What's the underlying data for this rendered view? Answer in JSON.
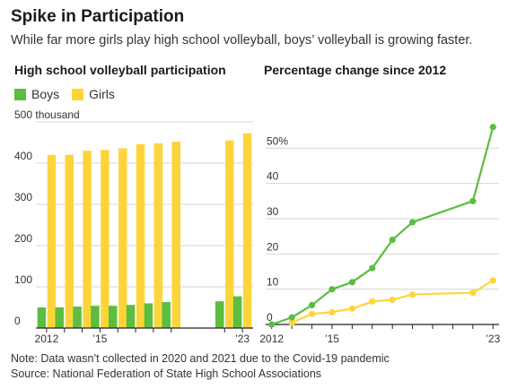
{
  "header": {
    "title": "Spike in Participation",
    "subtitle": "While far more girls play high school volleyball, boys’ volleyball is growing faster."
  },
  "legend": {
    "boys_label": "Boys",
    "girls_label": "Girls"
  },
  "colors": {
    "boys": "#5cbd3f",
    "girls": "#fdd53b",
    "grid": "#d6d6d6",
    "axis": "#222222"
  },
  "footer": {
    "note": "Note: Data wasn’t collected in 2020 and 2021 due to the Covid-19 pandemic",
    "source": "Source: National Federation of State High School Associations"
  },
  "chart_data": [
    {
      "type": "bar",
      "title": "High school volleyball participation",
      "ylabel": "",
      "ylim": [
        0,
        500
      ],
      "yticks": [
        {
          "value": 0,
          "label": "0"
        },
        {
          "value": 100,
          "label": "100"
        },
        {
          "value": 200,
          "label": "200"
        },
        {
          "value": 300,
          "label": "300"
        },
        {
          "value": 400,
          "label": "400"
        },
        {
          "value": 500,
          "label": "500 thousand"
        }
      ],
      "x": [
        2012,
        2013,
        2014,
        2015,
        2016,
        2017,
        2018,
        2019,
        2022,
        2023
      ],
      "xlim": [
        2011.4,
        2023.6
      ],
      "xticks": [
        {
          "value": 2012,
          "label": "2012"
        },
        {
          "value": 2015,
          "label": "’15"
        },
        {
          "value": 2023,
          "label": "’23"
        }
      ],
      "series": [
        {
          "name": "Boys",
          "values": [
            50,
            50,
            52,
            54,
            54,
            56,
            60,
            63,
            65,
            77
          ]
        },
        {
          "name": "Girls",
          "values": [
            420,
            420,
            430,
            432,
            436,
            446,
            448,
            452,
            455,
            472
          ]
        }
      ],
      "grid": true
    },
    {
      "type": "line",
      "title": "Percentage change since 2012",
      "ylim": [
        0,
        60
      ],
      "yticks": [
        {
          "value": 0,
          "label": "0"
        },
        {
          "value": 10,
          "label": "10"
        },
        {
          "value": 20,
          "label": "20"
        },
        {
          "value": 30,
          "label": "30"
        },
        {
          "value": 40,
          "label": "40"
        },
        {
          "value": 50,
          "label": "50%"
        }
      ],
      "xlim": [
        2011.7,
        2023.3
      ],
      "xticks": [
        {
          "value": 2012,
          "label": "2012"
        },
        {
          "value": 2015,
          "label": "’15"
        },
        {
          "value": 2023,
          "label": "’23"
        }
      ],
      "series": [
        {
          "name": "Boys",
          "x": [
            2012,
            2013,
            2014,
            2015,
            2016,
            2017,
            2018,
            2019,
            2022,
            2023
          ],
          "values": [
            0,
            2,
            5.5,
            10,
            12,
            16,
            24,
            29,
            35,
            56
          ]
        },
        {
          "name": "Girls",
          "x": [
            2013,
            2014,
            2015,
            2016,
            2017,
            2018,
            2019,
            2022,
            2023
          ],
          "values": [
            0.5,
            3,
            3.5,
            4.5,
            6.5,
            7,
            8.5,
            9,
            12.5
          ]
        }
      ],
      "grid": true
    }
  ]
}
